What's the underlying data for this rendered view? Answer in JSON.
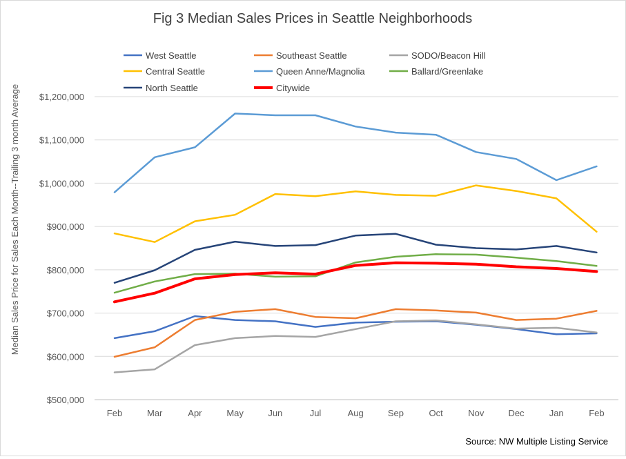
{
  "chart_data": {
    "type": "line",
    "title": "Fig 3 Median Sales Prices in Seattle Neighborhoods",
    "ylabel": "Median Sales Price for Sales Each Month--Trailing 3 month Average",
    "xlabel": "",
    "source": "Source: NW Multiple Listing Service",
    "categories": [
      "Feb",
      "Mar",
      "Apr",
      "May",
      "Jun",
      "Jul",
      "Aug",
      "Sep",
      "Oct",
      "Nov",
      "Dec",
      "Jan",
      "Feb"
    ],
    "ylim": [
      500000,
      1200000
    ],
    "yticks": [
      500000,
      600000,
      700000,
      800000,
      900000,
      1000000,
      1100000,
      1200000
    ],
    "ytick_labels": [
      "$500,000",
      "$600,000",
      "$700,000",
      "$800,000",
      "$900,000",
      "$1,000,000",
      "$1,100,000",
      "$1,200,000"
    ],
    "grid": true,
    "legend_position": "top",
    "series": [
      {
        "name": "West Seattle",
        "color": "#4472C4",
        "width": 2.5,
        "values": [
          642000,
          658000,
          693000,
          684000,
          681000,
          668000,
          678000,
          680000,
          681000,
          673000,
          663000,
          651000,
          653000
        ]
      },
      {
        "name": "Southeast Seattle",
        "color": "#ED7D31",
        "width": 2.5,
        "values": [
          599000,
          621000,
          684000,
          703000,
          709000,
          691000,
          688000,
          709000,
          706000,
          701000,
          684000,
          687000,
          705000
        ]
      },
      {
        "name": "SODO/Beacon Hill",
        "color": "#A5A5A5",
        "width": 2.5,
        "values": [
          563000,
          570000,
          626000,
          642000,
          647000,
          645000,
          663000,
          681000,
          683000,
          674000,
          664000,
          666000,
          655000
        ]
      },
      {
        "name": "Central Seattle",
        "color": "#FFC000",
        "width": 2.5,
        "values": [
          884000,
          864000,
          912000,
          927000,
          975000,
          970000,
          981000,
          973000,
          971000,
          995000,
          982000,
          965000,
          888000
        ]
      },
      {
        "name": "Queen Anne/Magnolia",
        "color": "#5B9BD5",
        "width": 2.5,
        "values": [
          979000,
          1060000,
          1083000,
          1161000,
          1157000,
          1157000,
          1131000,
          1117000,
          1112000,
          1072000,
          1056000,
          1007000,
          1039000
        ]
      },
      {
        "name": "Ballard/Greenlake",
        "color": "#70AD47",
        "width": 2.5,
        "values": [
          747000,
          773000,
          790000,
          791000,
          784000,
          785000,
          817000,
          830000,
          836000,
          835000,
          828000,
          820000,
          809000
        ]
      },
      {
        "name": "North Seattle",
        "color": "#264478",
        "width": 2.5,
        "values": [
          770000,
          799000,
          846000,
          865000,
          855000,
          857000,
          879000,
          883000,
          858000,
          850000,
          847000,
          855000,
          840000
        ]
      },
      {
        "name": "Citywide",
        "color": "#FF0000",
        "width": 4,
        "values": [
          726000,
          746000,
          779000,
          789000,
          793000,
          790000,
          810000,
          816000,
          815000,
          813000,
          807000,
          803000,
          796000
        ]
      }
    ]
  }
}
